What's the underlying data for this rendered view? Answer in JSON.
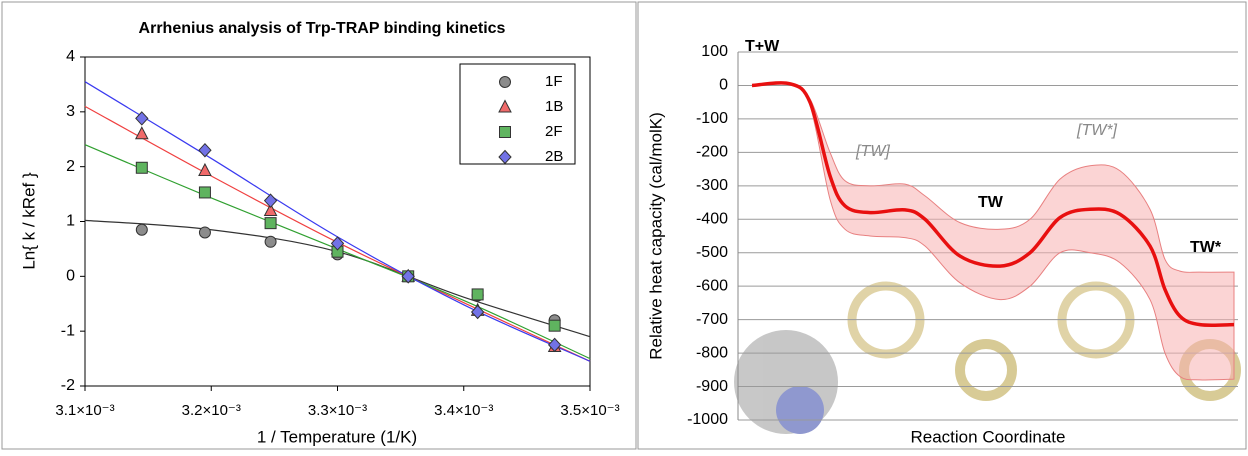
{
  "chart_data": [
    {
      "type": "scatter",
      "title": "Arrhenius analysis of Trp-TRAP binding kinetics",
      "x_label": "1 / Temperature (1/K)",
      "y_label": "Ln{ k / kRef }",
      "x": [
        0.003145,
        0.003195,
        0.003247,
        0.0033,
        0.003356,
        0.003411,
        0.003472
      ],
      "xlim": [
        0.0031,
        0.0035
      ],
      "xticks": [
        {
          "value": 0.0031,
          "label": "3.1×10⁻³"
        },
        {
          "value": 0.0032,
          "label": "3.2×10⁻³"
        },
        {
          "value": 0.0033,
          "label": "3.3×10⁻³"
        },
        {
          "value": 0.0034,
          "label": "3.4×10⁻³"
        },
        {
          "value": 0.0035,
          "label": "3.5×10⁻³"
        }
      ],
      "ylim": [
        -2,
        4
      ],
      "yticks": [
        -2,
        -1,
        0,
        1,
        2,
        3,
        4
      ],
      "legend": "upper right",
      "series": [
        {
          "name": "1F",
          "color": "#8c8c8c",
          "marker": "circle",
          "values": [
            0.85,
            0.8,
            0.63,
            0.4,
            0,
            -0.35,
            -0.8
          ],
          "fit": {
            "color": "#333333",
            "x": [
              0.0031,
              0.0032,
              0.0033,
              0.0034,
              0.0035
            ],
            "values": [
              1.02,
              0.85,
              0.45,
              -0.38,
              -1.1
            ]
          }
        },
        {
          "name": "1B",
          "color": "#f06a6a",
          "marker": "triangle",
          "values": [
            2.6,
            1.93,
            1.2,
            0.5,
            0,
            -0.62,
            -1.28
          ],
          "fit": {
            "color": "#f04040",
            "x": [
              0.0031,
              0.0032,
              0.0033,
              0.0034,
              0.0035
            ],
            "values": [
              3.1,
              1.83,
              0.62,
              -0.48,
              -1.55
            ]
          }
        },
        {
          "name": "2F",
          "color": "#5fb45f",
          "marker": "square",
          "values": [
            1.98,
            1.53,
            0.97,
            0.45,
            0,
            -0.33,
            -0.9
          ],
          "fit": {
            "color": "#30a030",
            "x": [
              0.0031,
              0.0032,
              0.0033,
              0.0034,
              0.0035
            ],
            "values": [
              2.4,
              1.43,
              0.5,
              -0.44,
              -1.5
            ]
          }
        },
        {
          "name": "2B",
          "color": "#7272e6",
          "marker": "diamond",
          "values": [
            2.88,
            2.3,
            1.38,
            0.6,
            0,
            -0.65,
            -1.25
          ],
          "fit": {
            "color": "#3a3af0",
            "x": [
              0.0031,
              0.0032,
              0.0033,
              0.0034,
              0.0035
            ],
            "values": [
              3.55,
              2.15,
              0.72,
              -0.52,
              -1.55
            ]
          }
        }
      ]
    },
    {
      "type": "line",
      "x_label": "Reaction Coordinate",
      "y_label": "Relative heat capacity (cal/molK)",
      "xlim": [
        0,
        100
      ],
      "ylim": [
        -1000,
        100
      ],
      "yticks": [
        -1000,
        -900,
        -800,
        -700,
        -600,
        -500,
        -400,
        -300,
        -200,
        -100,
        0,
        100
      ],
      "grid": true,
      "annotations": [
        "T+W",
        "[TW]",
        "TW",
        "[TW*]",
        "TW*"
      ],
      "x": [
        2.8,
        10.4,
        14.4,
        18.4,
        21.4,
        26.4,
        33.4,
        37.4,
        44.4,
        52.4,
        58.4,
        64.4,
        70.4,
        76.4,
        82.4,
        85.4,
        88.4,
        92.4,
        99.2
      ],
      "series": [
        {
          "color": "#e81010",
          "values": [
            0,
            5,
            -50,
            -270,
            -360,
            -380,
            -372,
            -400,
            -510,
            -540,
            -500,
            -395,
            -370,
            -385,
            -480,
            -610,
            -690,
            -715,
            -715
          ],
          "band": {
            "color": "#f8b0b0",
            "upper": [
              0,
              5,
              -40,
              -200,
              -285,
              -300,
              -295,
              -330,
              -410,
              -430,
              -400,
              -280,
              -240,
              -255,
              -370,
              -520,
              -555,
              -558,
              -558
            ],
            "lower": [
              0,
              5,
              -60,
              -340,
              -430,
              -450,
              -455,
              -480,
              -590,
              -640,
              -600,
              -500,
              -500,
              -530,
              -640,
              -800,
              -870,
              -880,
              -878
            ]
          }
        }
      ]
    }
  ]
}
